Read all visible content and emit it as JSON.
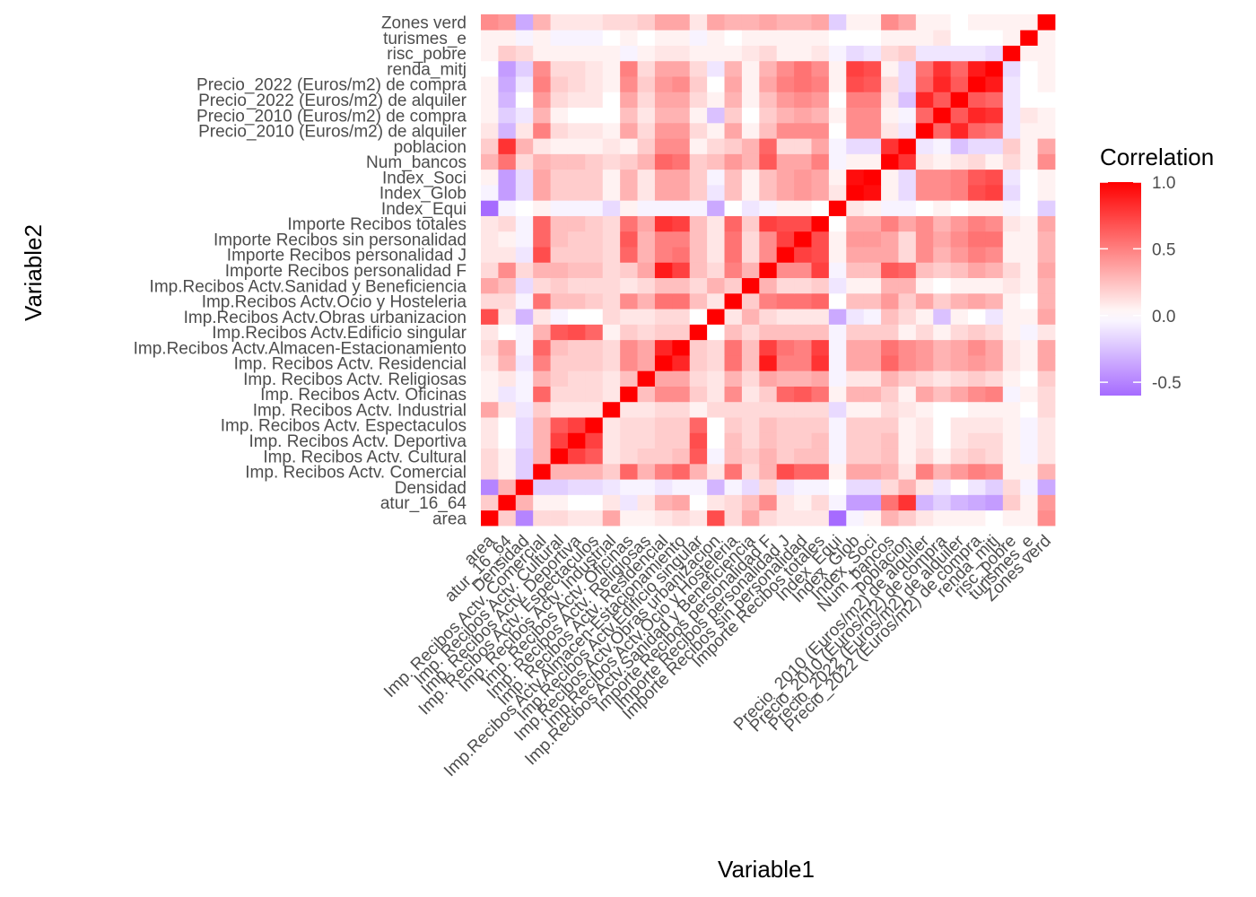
{
  "chart_data": {
    "type": "heatmap",
    "xlabel": "Variable1",
    "ylabel": "Variable2",
    "variables": [
      "area",
      "atur_16_64",
      "Densidad",
      "Imp. Recibos Actv. Comercial",
      "Imp. Recibos Actv. Cultural",
      "Imp. Recibos Actv. Deportiva",
      "Imp. Recibos Actv. Espectaculos",
      "Imp. Recibos Actv. Industrial",
      "Imp. Recibos Actv. Oficinas",
      "Imp. Recibos Actv. Religiosas",
      "Imp. Recibos Actv. Residencial",
      "Imp.Recibos Actv.Almacen-Estacionamiento",
      "Imp.Recibos Actv.Edificio singular",
      "Imp.Recibos Actv.Obras urbanizacion",
      "Imp.Recibos Actv.Ocio y Hosteleria",
      "Imp.Recibos Actv.Sanidad y Beneficiencia",
      "Importe Recibos personalidad F",
      "Importe Recibos personalidad J",
      "Importe Recibos sin personalidad",
      "Importe Recibos totales",
      "Index_Equi",
      "Index_Glob",
      "Index_Soci",
      "Num_bancos",
      "poblacion",
      "Precio_2010 (Euros/m2) de alquiler",
      "Precio_2010 (Euros/m2) de compra",
      "Precio_2022 (Euros/m2) de alquiler",
      "Precio_2022 (Euros/m2) de compra",
      "renda_mitj",
      "risc_pobre",
      "turismes_e",
      "Zones verd"
    ],
    "matrix": [
      [
        1.0,
        0.2,
        -0.5,
        0.15,
        0.15,
        0.1,
        0.1,
        0.35,
        0.05,
        0.05,
        0.1,
        0.15,
        0.1,
        0.7,
        0.15,
        0.35,
        0.15,
        0.1,
        0.1,
        0.1,
        -0.6,
        -0.05,
        0.05,
        0.3,
        0.2,
        0.1,
        0.05,
        0.05,
        0.05,
        0.0,
        0.05,
        0.05,
        0.45
      ],
      [
        0.2,
        1.0,
        0.3,
        0.05,
        0.05,
        0.0,
        0.0,
        0.1,
        -0.1,
        0.1,
        0.3,
        0.35,
        0.0,
        0.1,
        0.15,
        0.25,
        0.45,
        0.1,
        0.05,
        0.15,
        -0.05,
        -0.4,
        -0.4,
        0.55,
        0.8,
        -0.3,
        -0.2,
        -0.3,
        -0.35,
        -0.4,
        0.2,
        0.05,
        0.4
      ],
      [
        -0.5,
        0.3,
        1.0,
        -0.2,
        -0.2,
        -0.15,
        -0.15,
        -0.1,
        -0.05,
        -0.05,
        -0.1,
        -0.05,
        -0.05,
        -0.3,
        -0.05,
        -0.15,
        0.15,
        -0.1,
        -0.05,
        -0.05,
        0.0,
        -0.15,
        -0.15,
        0.15,
        0.3,
        0.1,
        -0.1,
        0.0,
        -0.1,
        -0.2,
        0.15,
        -0.05,
        -0.35
      ],
      [
        0.15,
        0.05,
        -0.2,
        1.0,
        0.3,
        0.3,
        0.3,
        0.2,
        0.6,
        0.3,
        0.5,
        0.6,
        0.3,
        0.1,
        0.55,
        0.15,
        0.3,
        0.7,
        0.6,
        0.6,
        0.05,
        0.35,
        0.35,
        0.3,
        0.1,
        0.5,
        0.3,
        0.4,
        0.5,
        0.45,
        0.05,
        0.05,
        0.3
      ],
      [
        0.15,
        0.05,
        -0.2,
        0.3,
        1.0,
        0.75,
        0.65,
        0.1,
        0.15,
        0.2,
        0.2,
        0.25,
        0.65,
        -0.05,
        0.25,
        0.2,
        0.3,
        0.2,
        0.25,
        0.25,
        -0.05,
        0.2,
        0.2,
        0.25,
        0.05,
        0.15,
        0.05,
        0.15,
        0.2,
        0.15,
        0.05,
        -0.05,
        0.1
      ],
      [
        0.1,
        0.0,
        -0.15,
        0.3,
        0.75,
        1.0,
        0.75,
        0.1,
        0.15,
        0.15,
        0.2,
        0.2,
        0.7,
        0.0,
        0.25,
        0.15,
        0.25,
        0.2,
        0.2,
        0.25,
        -0.05,
        0.2,
        0.2,
        0.25,
        0.05,
        0.1,
        0.0,
        0.1,
        0.15,
        0.15,
        0.05,
        -0.05,
        0.1
      ],
      [
        0.1,
        0.0,
        -0.15,
        0.3,
        0.65,
        0.75,
        1.0,
        0.1,
        0.15,
        0.15,
        0.2,
        0.2,
        0.6,
        0.0,
        0.2,
        0.15,
        0.25,
        0.2,
        0.2,
        0.2,
        -0.05,
        0.2,
        0.2,
        0.2,
        0.05,
        0.1,
        0.0,
        0.1,
        0.1,
        0.1,
        0.05,
        -0.05,
        0.1
      ],
      [
        0.35,
        0.1,
        -0.1,
        0.2,
        0.1,
        0.1,
        0.1,
        1.0,
        0.1,
        0.1,
        0.15,
        0.15,
        0.05,
        0.15,
        0.15,
        0.15,
        0.15,
        0.15,
        0.15,
        0.15,
        -0.15,
        0.05,
        0.05,
        0.15,
        0.1,
        0.05,
        0.0,
        0.0,
        0.05,
        0.05,
        0.05,
        0.0,
        0.15
      ],
      [
        0.05,
        -0.1,
        -0.05,
        0.6,
        0.15,
        0.15,
        0.15,
        0.1,
        1.0,
        0.25,
        0.45,
        0.45,
        0.2,
        0.1,
        0.45,
        0.1,
        0.2,
        0.6,
        0.65,
        0.55,
        0.05,
        0.3,
        0.3,
        0.2,
        0.05,
        0.35,
        0.25,
        0.35,
        0.45,
        0.5,
        -0.05,
        0.05,
        0.15
      ],
      [
        0.05,
        0.1,
        -0.05,
        0.3,
        0.2,
        0.15,
        0.15,
        0.1,
        0.25,
        1.0,
        0.35,
        0.35,
        0.15,
        0.1,
        0.3,
        0.15,
        0.35,
        0.3,
        0.3,
        0.35,
        -0.05,
        0.1,
        0.1,
        0.3,
        0.2,
        0.15,
        0.1,
        0.15,
        0.2,
        0.15,
        0.05,
        0.0,
        0.2
      ],
      [
        0.1,
        0.3,
        -0.1,
        0.5,
        0.2,
        0.2,
        0.2,
        0.15,
        0.45,
        0.35,
        1.0,
        0.85,
        0.2,
        0.15,
        0.55,
        0.25,
        0.9,
        0.5,
        0.5,
        0.8,
        -0.05,
        0.35,
        0.35,
        0.6,
        0.45,
        0.4,
        0.3,
        0.35,
        0.4,
        0.35,
        0.1,
        0.05,
        0.35
      ],
      [
        0.15,
        0.35,
        -0.05,
        0.6,
        0.25,
        0.2,
        0.2,
        0.15,
        0.45,
        0.35,
        0.85,
        1.0,
        0.2,
        0.15,
        0.55,
        0.25,
        0.75,
        0.55,
        0.5,
        0.75,
        -0.05,
        0.35,
        0.35,
        0.55,
        0.45,
        0.4,
        0.3,
        0.35,
        0.45,
        0.35,
        0.1,
        0.05,
        0.35
      ],
      [
        0.1,
        0.0,
        -0.05,
        0.3,
        0.65,
        0.7,
        0.6,
        0.05,
        0.2,
        0.15,
        0.2,
        0.2,
        1.0,
        0.0,
        0.25,
        0.15,
        0.25,
        0.25,
        0.25,
        0.25,
        -0.05,
        0.2,
        0.2,
        0.2,
        0.05,
        0.15,
        0.05,
        0.15,
        0.2,
        0.15,
        0.05,
        -0.05,
        0.1
      ],
      [
        0.7,
        0.1,
        -0.3,
        0.1,
        -0.05,
        0.0,
        0.0,
        0.15,
        0.1,
        0.1,
        0.15,
        0.15,
        0.0,
        1.0,
        0.1,
        0.3,
        0.15,
        0.1,
        0.1,
        0.1,
        -0.35,
        -0.1,
        -0.05,
        0.25,
        0.15,
        0.05,
        -0.25,
        0.05,
        0.0,
        -0.1,
        0.05,
        0.05,
        0.35
      ],
      [
        0.15,
        0.15,
        -0.05,
        0.55,
        0.25,
        0.25,
        0.2,
        0.15,
        0.45,
        0.3,
        0.55,
        0.55,
        0.25,
        0.1,
        1.0,
        0.2,
        0.5,
        0.55,
        0.55,
        0.6,
        0.0,
        0.25,
        0.25,
        0.4,
        0.2,
        0.35,
        0.2,
        0.3,
        0.35,
        0.3,
        0.05,
        0.0,
        0.3
      ],
      [
        0.35,
        0.25,
        -0.15,
        0.15,
        0.2,
        0.15,
        0.15,
        0.15,
        0.1,
        0.15,
        0.25,
        0.25,
        0.15,
        0.3,
        0.2,
        1.0,
        0.3,
        0.15,
        0.15,
        0.2,
        -0.1,
        0.05,
        0.05,
        0.3,
        0.3,
        0.05,
        0.0,
        0.05,
        0.05,
        0.05,
        0.1,
        0.05,
        0.3
      ],
      [
        0.15,
        0.45,
        0.15,
        0.3,
        0.3,
        0.25,
        0.25,
        0.15,
        0.2,
        0.35,
        0.9,
        0.75,
        0.25,
        0.15,
        0.5,
        0.3,
        1.0,
        0.45,
        0.45,
        0.75,
        -0.05,
        0.25,
        0.25,
        0.65,
        0.6,
        0.25,
        0.2,
        0.25,
        0.35,
        0.3,
        0.15,
        0.05,
        0.35
      ],
      [
        0.1,
        0.1,
        -0.1,
        0.7,
        0.2,
        0.2,
        0.2,
        0.15,
        0.6,
        0.3,
        0.5,
        0.55,
        0.25,
        0.1,
        0.55,
        0.15,
        0.45,
        1.0,
        0.75,
        0.7,
        0.05,
        0.35,
        0.35,
        0.35,
        0.15,
        0.45,
        0.3,
        0.4,
        0.5,
        0.45,
        0.05,
        0.05,
        0.3
      ],
      [
        0.1,
        0.05,
        -0.05,
        0.6,
        0.25,
        0.2,
        0.2,
        0.15,
        0.65,
        0.3,
        0.5,
        0.5,
        0.25,
        0.1,
        0.55,
        0.15,
        0.45,
        0.75,
        1.0,
        0.7,
        0.05,
        0.4,
        0.4,
        0.35,
        0.15,
        0.45,
        0.35,
        0.45,
        0.55,
        0.55,
        0.05,
        0.05,
        0.3
      ],
      [
        0.1,
        0.15,
        -0.05,
        0.6,
        0.25,
        0.25,
        0.2,
        0.15,
        0.55,
        0.35,
        0.8,
        0.75,
        0.25,
        0.1,
        0.6,
        0.2,
        0.75,
        0.7,
        0.7,
        1.0,
        0.0,
        0.35,
        0.35,
        0.5,
        0.35,
        0.45,
        0.3,
        0.4,
        0.5,
        0.45,
        0.1,
        0.05,
        0.35
      ],
      [
        -0.6,
        -0.05,
        0.0,
        0.05,
        -0.05,
        -0.05,
        -0.05,
        -0.15,
        0.05,
        -0.05,
        -0.05,
        -0.05,
        -0.05,
        -0.35,
        0.0,
        -0.1,
        -0.05,
        0.05,
        0.05,
        0.0,
        1.0,
        0.1,
        0.05,
        -0.05,
        -0.05,
        0.0,
        0.05,
        0.0,
        0.05,
        0.05,
        -0.05,
        0.0,
        -0.2
      ],
      [
        -0.05,
        -0.4,
        -0.15,
        0.35,
        0.2,
        0.2,
        0.2,
        0.05,
        0.3,
        0.1,
        0.35,
        0.35,
        0.2,
        -0.1,
        0.25,
        0.05,
        0.25,
        0.35,
        0.4,
        0.35,
        0.1,
        1.0,
        0.95,
        0.05,
        -0.15,
        0.45,
        0.45,
        0.5,
        0.7,
        0.75,
        -0.15,
        0.0,
        0.05
      ],
      [
        0.05,
        -0.4,
        -0.15,
        0.35,
        0.2,
        0.2,
        0.2,
        0.05,
        0.3,
        0.1,
        0.35,
        0.35,
        0.2,
        -0.05,
        0.25,
        0.05,
        0.25,
        0.35,
        0.4,
        0.35,
        0.05,
        0.95,
        1.0,
        0.05,
        -0.15,
        0.45,
        0.45,
        0.5,
        0.65,
        0.7,
        -0.1,
        0.0,
        0.05
      ],
      [
        0.3,
        0.55,
        0.15,
        0.3,
        0.25,
        0.25,
        0.2,
        0.15,
        0.2,
        0.3,
        0.6,
        0.55,
        0.2,
        0.25,
        0.4,
        0.3,
        0.65,
        0.35,
        0.35,
        0.5,
        -0.05,
        0.05,
        0.05,
        1.0,
        0.8,
        0.1,
        0.05,
        0.1,
        0.15,
        0.05,
        0.15,
        0.05,
        0.45
      ],
      [
        0.2,
        0.8,
        0.3,
        0.1,
        0.05,
        0.05,
        0.05,
        0.1,
        0.05,
        0.2,
        0.45,
        0.45,
        0.05,
        0.15,
        0.2,
        0.3,
        0.6,
        0.15,
        0.15,
        0.35,
        -0.05,
        -0.15,
        -0.15,
        0.8,
        1.0,
        -0.1,
        -0.05,
        -0.25,
        -0.15,
        -0.15,
        0.2,
        0.05,
        0.35
      ],
      [
        0.1,
        -0.3,
        0.1,
        0.5,
        0.15,
        0.1,
        0.1,
        0.05,
        0.35,
        0.15,
        0.4,
        0.4,
        0.15,
        0.05,
        0.35,
        0.05,
        0.25,
        0.45,
        0.45,
        0.45,
        0.0,
        0.45,
        0.45,
        0.1,
        -0.1,
        1.0,
        0.6,
        0.85,
        0.6,
        0.55,
        -0.1,
        0.05,
        0.05
      ],
      [
        0.05,
        -0.2,
        -0.1,
        0.3,
        0.05,
        0.0,
        0.0,
        0.0,
        0.25,
        0.1,
        0.3,
        0.3,
        0.05,
        -0.25,
        0.2,
        0.0,
        0.2,
        0.3,
        0.35,
        0.3,
        0.05,
        0.45,
        0.45,
        0.05,
        -0.05,
        0.6,
        1.0,
        0.65,
        0.85,
        0.8,
        -0.1,
        0.1,
        0.05
      ],
      [
        0.05,
        -0.3,
        0.0,
        0.4,
        0.15,
        0.1,
        0.1,
        0.0,
        0.35,
        0.15,
        0.35,
        0.35,
        0.15,
        0.05,
        0.3,
        0.05,
        0.25,
        0.4,
        0.45,
        0.4,
        0.0,
        0.5,
        0.5,
        0.1,
        -0.25,
        0.85,
        0.65,
        1.0,
        0.65,
        0.6,
        -0.1,
        0.0,
        0.0
      ],
      [
        0.05,
        -0.35,
        -0.1,
        0.5,
        0.2,
        0.15,
        0.1,
        0.05,
        0.45,
        0.2,
        0.4,
        0.45,
        0.2,
        0.0,
        0.35,
        0.05,
        0.35,
        0.5,
        0.55,
        0.5,
        0.05,
        0.7,
        0.65,
        0.15,
        -0.15,
        0.6,
        0.85,
        0.65,
        1.0,
        0.9,
        -0.1,
        0.0,
        0.05
      ],
      [
        0.0,
        -0.4,
        -0.2,
        0.45,
        0.15,
        0.15,
        0.1,
        0.05,
        0.5,
        0.15,
        0.35,
        0.35,
        0.15,
        -0.1,
        0.3,
        0.05,
        0.3,
        0.45,
        0.55,
        0.45,
        0.05,
        0.75,
        0.7,
        0.05,
        -0.15,
        0.55,
        0.8,
        0.6,
        0.9,
        1.0,
        -0.15,
        0.0,
        0.05
      ],
      [
        0.05,
        0.2,
        0.15,
        0.05,
        0.05,
        0.05,
        0.05,
        0.05,
        -0.05,
        0.05,
        0.1,
        0.1,
        0.05,
        0.05,
        0.05,
        0.1,
        0.15,
        0.05,
        0.05,
        0.1,
        -0.05,
        -0.15,
        -0.1,
        0.15,
        0.2,
        -0.1,
        -0.1,
        -0.1,
        -0.1,
        -0.15,
        1.0,
        0.05,
        0.05
      ],
      [
        0.05,
        0.05,
        -0.05,
        0.05,
        -0.05,
        -0.05,
        -0.05,
        0.0,
        0.05,
        0.0,
        0.05,
        0.05,
        -0.05,
        0.05,
        0.0,
        0.05,
        0.05,
        0.05,
        0.05,
        0.05,
        0.0,
        0.0,
        0.0,
        0.05,
        0.05,
        0.05,
        0.1,
        0.0,
        0.0,
        0.0,
        0.05,
        1.0,
        0.05
      ],
      [
        0.45,
        0.4,
        -0.35,
        0.3,
        0.1,
        0.1,
        0.1,
        0.15,
        0.15,
        0.2,
        0.35,
        0.35,
        0.1,
        0.35,
        0.3,
        0.3,
        0.35,
        0.3,
        0.3,
        0.35,
        -0.2,
        0.05,
        0.05,
        0.45,
        0.35,
        0.05,
        0.05,
        0.0,
        0.05,
        0.05,
        0.05,
        0.05,
        1.0
      ]
    ],
    "legend": {
      "title": "Correlation",
      "ticks": [
        {
          "value": 1.0,
          "label": "1.0"
        },
        {
          "value": 0.5,
          "label": "0.5"
        },
        {
          "value": 0.0,
          "label": "0.0"
        },
        {
          "value": -0.5,
          "label": "-0.5"
        }
      ],
      "min": -0.6,
      "max": 1.0,
      "placement": "right"
    },
    "colors": {
      "low": "#A66BFF",
      "mid": "#FFFFFF",
      "high": "#FF0000"
    }
  }
}
